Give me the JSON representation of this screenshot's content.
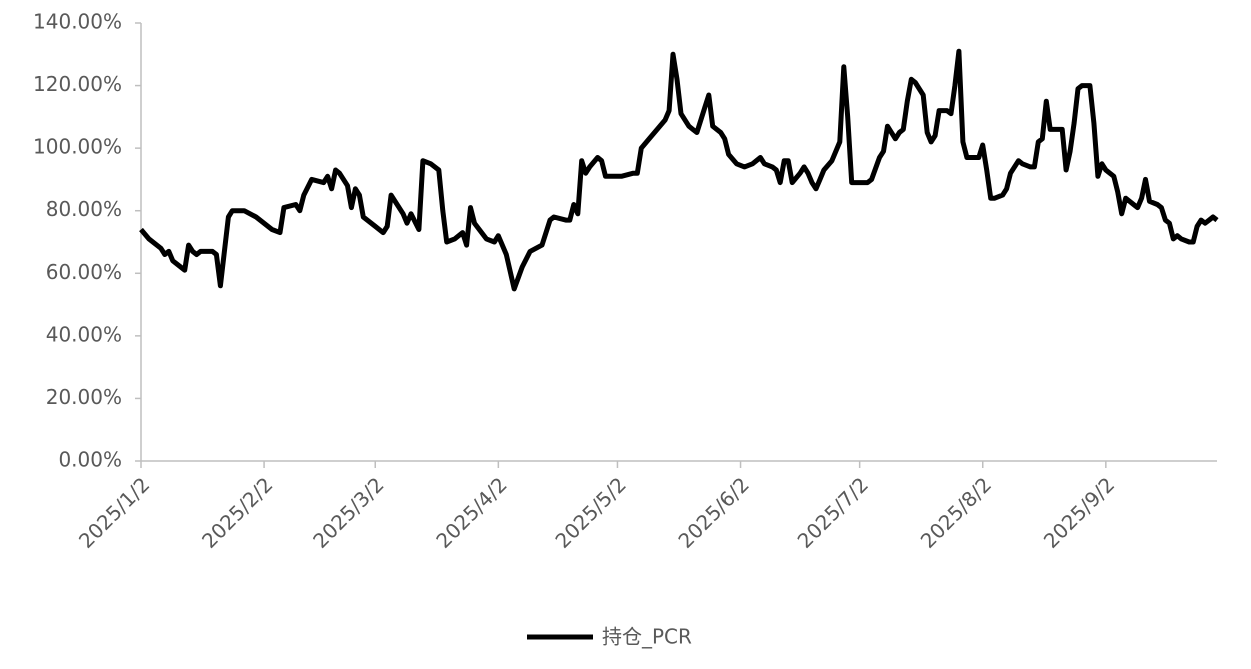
{
  "chart_data": {
    "type": "line",
    "x": [
      "2025/1/2",
      "2025/1/4",
      "2025/1/7",
      "2025/1/8",
      "2025/1/9",
      "2025/1/10",
      "2025/1/12",
      "2025/1/13",
      "2025/1/14",
      "2025/1/15",
      "2025/1/16",
      "2025/1/17",
      "2025/1/20",
      "2025/1/21",
      "2025/1/22",
      "2025/1/24",
      "2025/1/25",
      "2025/1/28",
      "2025/1/31",
      "2025/2/4",
      "2025/2/6",
      "2025/2/7",
      "2025/2/10",
      "2025/2/11",
      "2025/2/12",
      "2025/2/14",
      "2025/2/17",
      "2025/2/18",
      "2025/2/19",
      "2025/2/20",
      "2025/2/21",
      "2025/2/23",
      "2025/2/24",
      "2025/2/25",
      "2025/2/26",
      "2025/2/27",
      "2025/3/2",
      "2025/3/4",
      "2025/3/5",
      "2025/3/6",
      "2025/3/9",
      "2025/3/10",
      "2025/3/11",
      "2025/3/13",
      "2025/3/14",
      "2025/3/16",
      "2025/3/18",
      "2025/3/19",
      "2025/3/20",
      "2025/3/22",
      "2025/3/24",
      "2025/3/25",
      "2025/3/26",
      "2025/3/27",
      "2025/3/30",
      "2025/4/1",
      "2025/4/2",
      "2025/4/4",
      "2025/4/6",
      "2025/4/8",
      "2025/4/10",
      "2025/4/13",
      "2025/4/15",
      "2025/4/16",
      "2025/4/19",
      "2025/4/20",
      "2025/4/21",
      "2025/4/22",
      "2025/4/23",
      "2025/4/24",
      "2025/4/25",
      "2025/4/27",
      "2025/4/28",
      "2025/4/29",
      "2025/5/3",
      "2025/5/6",
      "2025/5/7",
      "2025/5/8",
      "2025/5/10",
      "2025/5/14",
      "2025/5/15",
      "2025/5/16",
      "2025/5/17",
      "2025/5/18",
      "2025/5/20",
      "2025/5/21",
      "2025/5/22",
      "2025/5/24",
      "2025/5/25",
      "2025/5/26",
      "2025/5/28",
      "2025/5/29",
      "2025/5/30",
      "2025/6/1",
      "2025/6/3",
      "2025/6/5",
      "2025/6/7",
      "2025/6/8",
      "2025/6/10",
      "2025/6/11",
      "2025/6/12",
      "2025/6/13",
      "2025/6/14",
      "2025/6/15",
      "2025/6/17",
      "2025/6/18",
      "2025/6/19",
      "2025/6/20",
      "2025/6/21",
      "2025/6/22",
      "2025/6/23",
      "2025/6/25",
      "2025/6/27",
      "2025/6/28",
      "2025/6/29",
      "2025/6/30",
      "2025/7/4",
      "2025/7/5",
      "2025/7/7",
      "2025/7/8",
      "2025/7/9",
      "2025/7/11",
      "2025/7/12",
      "2025/7/13",
      "2025/7/14",
      "2025/7/15",
      "2025/7/16",
      "2025/7/18",
      "2025/7/19",
      "2025/7/20",
      "2025/7/21",
      "2025/7/22",
      "2025/7/24",
      "2025/7/25",
      "2025/7/26",
      "2025/7/27",
      "2025/7/28",
      "2025/7/29",
      "2025/8/1",
      "2025/8/2",
      "2025/8/3",
      "2025/8/4",
      "2025/8/5",
      "2025/8/7",
      "2025/8/8",
      "2025/8/9",
      "2025/8/11",
      "2025/8/12",
      "2025/8/14",
      "2025/8/15",
      "2025/8/16",
      "2025/8/17",
      "2025/8/18",
      "2025/8/19",
      "2025/8/22",
      "2025/8/23",
      "2025/8/24",
      "2025/8/25",
      "2025/8/26",
      "2025/8/27",
      "2025/8/29",
      "2025/8/30",
      "2025/8/31",
      "2025/9/1",
      "2025/9/2",
      "2025/9/4",
      "2025/9/5",
      "2025/9/6",
      "2025/9/7",
      "2025/9/9",
      "2025/9/10",
      "2025/9/11",
      "2025/9/12",
      "2025/9/13",
      "2025/9/15",
      "2025/9/16",
      "2025/9/17",
      "2025/9/18",
      "2025/9/19",
      "2025/9/20",
      "2025/9/21",
      "2025/9/23",
      "2025/9/24",
      "2025/9/25",
      "2025/9/26",
      "2025/9/27",
      "2025/9/28",
      "2025/9/29",
      "2025/9/30"
    ],
    "series": [
      {
        "name": "持仓_PCR",
        "color": "#000000",
        "values": [
          74,
          71,
          68,
          66,
          67,
          64,
          62,
          61,
          69,
          67,
          66,
          67,
          67,
          66,
          56,
          78,
          80,
          80,
          78,
          74,
          73,
          81,
          82,
          80,
          85,
          90,
          89,
          91,
          87,
          93,
          92,
          88,
          81,
          87,
          85,
          78,
          75,
          73,
          75,
          85,
          79,
          76,
          79,
          74,
          96,
          95,
          93,
          80,
          70,
          71,
          73,
          69,
          81,
          76,
          71,
          70,
          72,
          66,
          55,
          62,
          67,
          69,
          77,
          78,
          77,
          77,
          82,
          79,
          96,
          92,
          94,
          97,
          96,
          91,
          91,
          92,
          92,
          100,
          103,
          109,
          112,
          130,
          122,
          111,
          107,
          106,
          105,
          113,
          117,
          107,
          105,
          103,
          98,
          95,
          94,
          95,
          97,
          95,
          94,
          93,
          89,
          96,
          96,
          89,
          92,
          94,
          92,
          89,
          87,
          90,
          93,
          96,
          102,
          126,
          110,
          89,
          89,
          90,
          97,
          99,
          107,
          103,
          105,
          106,
          115,
          122,
          121,
          117,
          105,
          102,
          104,
          112,
          112,
          111,
          120,
          131,
          102,
          97,
          97,
          101,
          93,
          84,
          84,
          85,
          87,
          92,
          96,
          95,
          94,
          94,
          102,
          103,
          115,
          106,
          106,
          93,
          99,
          108,
          119,
          120,
          120,
          108,
          91,
          95,
          93,
          91,
          86,
          79,
          84,
          82,
          81,
          84,
          90,
          83,
          82,
          81,
          77,
          76,
          71,
          72,
          71,
          70,
          70,
          75,
          77,
          76,
          77,
          78,
          77
        ]
      }
    ],
    "xlim": [
      "2025/1/2",
      "2025/9/30"
    ],
    "xticks": [
      "2025/1/2",
      "2025/2/2",
      "2025/3/2",
      "2025/4/2",
      "2025/5/2",
      "2025/6/2",
      "2025/7/2",
      "2025/8/2",
      "2025/9/2"
    ],
    "ylim": [
      0,
      140
    ],
    "yticks": [
      {
        "value": 0,
        "label": "0.00%"
      },
      {
        "value": 20,
        "label": "20.00%"
      },
      {
        "value": 40,
        "label": "40.00%"
      },
      {
        "value": 60,
        "label": "60.00%"
      },
      {
        "value": 80,
        "label": "80.00%"
      },
      {
        "value": 100,
        "label": "100.00%"
      },
      {
        "value": 120,
        "label": "120.00%"
      },
      {
        "value": 140,
        "label": "140.00%"
      }
    ],
    "grid": false,
    "legend": "bottom"
  }
}
